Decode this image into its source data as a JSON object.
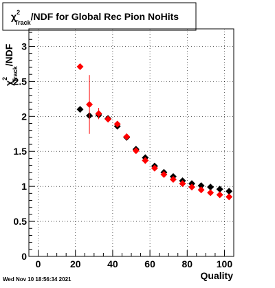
{
  "chart_data": {
    "type": "scatter",
    "title_prefix": "χ",
    "title_sup": "2",
    "title_sub": "Track",
    "title_suffix": "/NDF for Global Rec Pion NoHits",
    "xlabel": "Quality",
    "ylabel_prefix": "χ",
    "ylabel_sup": "2",
    "ylabel_sub": "Track",
    "ylabel_suffix": "/NDF",
    "xlim": [
      -5,
      105
    ],
    "ylim": [
      0,
      3.25
    ],
    "xticks": [
      0,
      20,
      40,
      60,
      80,
      100
    ],
    "yticks": [
      0,
      0.5,
      1,
      1.5,
      2,
      2.5,
      3
    ],
    "xtick_labels": [
      "0",
      "20",
      "40",
      "60",
      "80",
      "100"
    ],
    "ytick_labels": [
      "0",
      "0.5",
      "1",
      "1.5",
      "2",
      "2.5",
      "3"
    ],
    "grid": true,
    "series": [
      {
        "color": "#000000",
        "points": [
          {
            "x": 22.5,
            "y": 2.1,
            "err": 0.0
          },
          {
            "x": 27.5,
            "y": 2.01,
            "err": 0.06
          },
          {
            "x": 32.5,
            "y": 2.02,
            "err": 0.03
          },
          {
            "x": 37.5,
            "y": 1.97,
            "err": 0.02
          },
          {
            "x": 42.5,
            "y": 1.86,
            "err": 0.02
          },
          {
            "x": 47.5,
            "y": 1.7,
            "err": 0.01
          },
          {
            "x": 52.5,
            "y": 1.53,
            "err": 0.01
          },
          {
            "x": 57.5,
            "y": 1.41,
            "err": 0.01
          },
          {
            "x": 62.5,
            "y": 1.29,
            "err": 0.01
          },
          {
            "x": 67.5,
            "y": 1.2,
            "err": 0.01
          },
          {
            "x": 72.5,
            "y": 1.14,
            "err": 0.01
          },
          {
            "x": 77.5,
            "y": 1.08,
            "err": 0.01
          },
          {
            "x": 82.5,
            "y": 1.04,
            "err": 0.01
          },
          {
            "x": 87.5,
            "y": 1.01,
            "err": 0.01
          },
          {
            "x": 92.5,
            "y": 0.99,
            "err": 0.01
          },
          {
            "x": 97.5,
            "y": 0.96,
            "err": 0.01
          },
          {
            "x": 102.5,
            "y": 0.93,
            "err": 0.01
          }
        ]
      },
      {
        "color": "#ff0000",
        "points": [
          {
            "x": 22.5,
            "y": 2.71,
            "err": 0.0
          },
          {
            "x": 27.5,
            "y": 2.17,
            "err": 0.42
          },
          {
            "x": 32.5,
            "y": 2.04,
            "err": 0.08
          },
          {
            "x": 37.5,
            "y": 1.96,
            "err": 0.03
          },
          {
            "x": 42.5,
            "y": 1.89,
            "err": 0.02
          },
          {
            "x": 47.5,
            "y": 1.71,
            "err": 0.02
          },
          {
            "x": 52.5,
            "y": 1.51,
            "err": 0.02
          },
          {
            "x": 57.5,
            "y": 1.37,
            "err": 0.01
          },
          {
            "x": 62.5,
            "y": 1.26,
            "err": 0.01
          },
          {
            "x": 67.5,
            "y": 1.17,
            "err": 0.01
          },
          {
            "x": 72.5,
            "y": 1.1,
            "err": 0.01
          },
          {
            "x": 77.5,
            "y": 1.04,
            "err": 0.01
          },
          {
            "x": 82.5,
            "y": 0.99,
            "err": 0.01
          },
          {
            "x": 87.5,
            "y": 0.95,
            "err": 0.01
          },
          {
            "x": 92.5,
            "y": 0.91,
            "err": 0.01
          },
          {
            "x": 97.5,
            "y": 0.88,
            "err": 0.01
          },
          {
            "x": 102.5,
            "y": 0.85,
            "err": 0.01
          }
        ]
      }
    ]
  },
  "footer": {
    "timestamp": "Wed Nov 10 18:56:34 2021"
  }
}
